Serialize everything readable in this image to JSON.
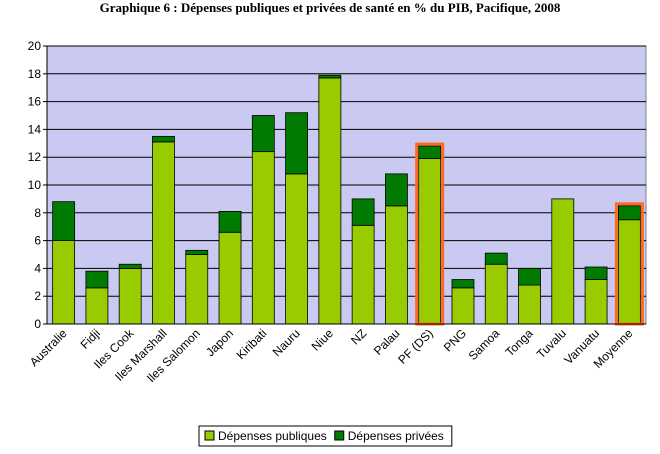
{
  "chart_data": {
    "type": "stacked_bar",
    "title": "Graphique 6 : Dépenses publiques et privées de santé en % du PIB, Pacifique, 2008",
    "categories": [
      "Australie",
      "Fidji",
      "Iles Cook",
      "Iles Marshall",
      "Iles Salomon",
      "Japon",
      "Kiribati",
      "Nauru",
      "Niue",
      "NZ",
      "Palau",
      "PF (DS)",
      "PNG",
      "Samoa",
      "Tonga",
      "Tuvalu",
      "Vanuatu",
      "Moyenne"
    ],
    "series": [
      {
        "name": "Dépenses publiques",
        "color": "#99cc00",
        "values": [
          6.0,
          2.6,
          4.0,
          13.1,
          5.0,
          6.6,
          12.4,
          10.8,
          17.7,
          7.1,
          8.5,
          11.9,
          2.6,
          4.3,
          2.8,
          9.0,
          3.2,
          7.5
        ]
      },
      {
        "name": "Dépenses privées",
        "color": "#007a00",
        "values": [
          2.8,
          1.2,
          0.3,
          0.4,
          0.3,
          1.5,
          2.6,
          4.4,
          0.2,
          1.9,
          2.3,
          0.9,
          0.6,
          0.8,
          1.2,
          0,
          0.9,
          1.0
        ]
      }
    ],
    "highlight": [
      11,
      17
    ],
    "highlight_color": "#ff6a1a",
    "ylim": [
      0,
      20
    ],
    "yticks": [
      0,
      2,
      4,
      6,
      8,
      10,
      12,
      14,
      16,
      18,
      20
    ],
    "grid": true,
    "legend": "bottom"
  }
}
